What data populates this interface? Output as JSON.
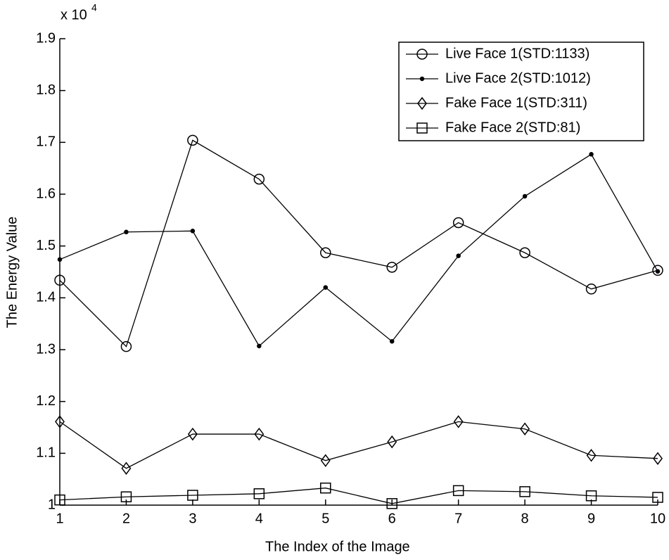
{
  "chart_data": {
    "type": "line",
    "x_label": "The Index of the Image",
    "y_label": "The Energy Value",
    "y_exponent": {
      "base": "x 10",
      "power": "4"
    },
    "x": [
      1,
      2,
      3,
      4,
      5,
      6,
      7,
      8,
      9,
      10
    ],
    "xlim": [
      1,
      10
    ],
    "xticks": [
      1,
      2,
      3,
      4,
      5,
      6,
      7,
      8,
      9,
      10
    ],
    "ylim": [
      1,
      1.9
    ],
    "yticks": [
      1,
      1.1,
      1.2,
      1.3,
      1.4,
      1.5,
      1.6,
      1.7,
      1.8,
      1.9
    ],
    "grid": false,
    "legend_position": "top-right",
    "series": [
      {
        "name": "Live Face 1(STD:1133)",
        "color": "#000000",
        "marker": "circle",
        "values": [
          1.434,
          1.306,
          1.704,
          1.629,
          1.487,
          1.459,
          1.545,
          1.487,
          1.417,
          1.453
        ]
      },
      {
        "name": "Live Face 2(STD:1012)",
        "color": "#000000",
        "marker": "dot",
        "values": [
          1.474,
          1.527,
          1.529,
          1.307,
          1.42,
          1.316,
          1.481,
          1.596,
          1.677,
          1.451
        ]
      },
      {
        "name": "Fake Face 1(STD:311)",
        "color": "#000000",
        "marker": "diamond",
        "values": [
          1.161,
          1.071,
          1.137,
          1.137,
          1.086,
          1.122,
          1.161,
          1.147,
          1.096,
          1.09
        ]
      },
      {
        "name": "Fake Face 2(STD:81)",
        "color": "#000000",
        "marker": "square",
        "values": [
          1.01,
          1.016,
          1.019,
          1.022,
          1.033,
          1.003,
          1.028,
          1.026,
          1.018,
          1.015
        ]
      }
    ]
  }
}
